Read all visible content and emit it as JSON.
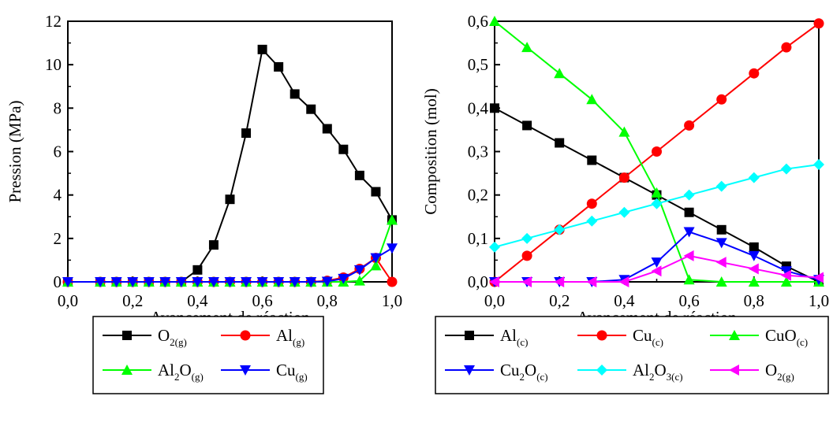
{
  "chart_data": [
    {
      "type": "line",
      "xlabel": "Avancement de réaction",
      "ylabel": "Pression (MPa)",
      "xlim": [
        0,
        1
      ],
      "ylim": [
        0,
        12
      ],
      "xticks": [
        "0,0",
        "0,2",
        "0,4",
        "0,6",
        "0,8",
        "1,0"
      ],
      "yticks": [
        "0",
        "2",
        "4",
        "6",
        "8",
        "10",
        "12"
      ],
      "legend_placement": "below",
      "series": [
        {
          "name": "O2(g)",
          "label_main": "O",
          "label_sub_1": "2(g)",
          "label_mid": "",
          "label_sub_2": "",
          "color": "#000000",
          "marker": "square",
          "x": [
            0,
            0.1,
            0.15,
            0.2,
            0.25,
            0.3,
            0.35,
            0.4,
            0.45,
            0.5,
            0.55,
            0.6,
            0.65,
            0.7,
            0.75,
            0.8,
            0.85,
            0.9,
            0.95,
            1.0
          ],
          "y": [
            0,
            0,
            0,
            0,
            0,
            0,
            0,
            0.55,
            1.7,
            3.8,
            6.85,
            10.7,
            9.9,
            8.65,
            7.95,
            7.05,
            6.1,
            4.9,
            4.15,
            2.85
          ]
        },
        {
          "name": "Al(g)",
          "label_main": "Al",
          "label_sub_1": "(g)",
          "label_mid": "",
          "label_sub_2": "",
          "color": "#ff0000",
          "marker": "circle",
          "x": [
            0,
            0.1,
            0.15,
            0.2,
            0.25,
            0.3,
            0.35,
            0.4,
            0.45,
            0.5,
            0.55,
            0.6,
            0.65,
            0.7,
            0.75,
            0.8,
            0.85,
            0.9,
            0.95,
            1.0
          ],
          "y": [
            0,
            0,
            0,
            0,
            0,
            0,
            0,
            0,
            0,
            0,
            0,
            0,
            0,
            0,
            0,
            0.05,
            0.2,
            0.6,
            1.1,
            0
          ]
        },
        {
          "name": "Al2O(g)",
          "label_main": "Al",
          "label_sub_1": "2",
          "label_mid": "O",
          "label_sub_2": "(g)",
          "color": "#00ff00",
          "marker": "triangle-up",
          "x": [
            0,
            0.1,
            0.15,
            0.2,
            0.25,
            0.3,
            0.35,
            0.4,
            0.45,
            0.5,
            0.55,
            0.6,
            0.65,
            0.7,
            0.75,
            0.8,
            0.85,
            0.9,
            0.95,
            1.0
          ],
          "y": [
            0,
            0,
            0,
            0,
            0,
            0,
            0,
            0,
            0,
            0,
            0,
            0,
            0,
            0,
            0,
            0,
            0,
            0.05,
            0.75,
            2.85
          ]
        },
        {
          "name": "Cu(g)",
          "label_main": "Cu",
          "label_sub_1": "(g)",
          "label_mid": "",
          "label_sub_2": "",
          "color": "#0000ff",
          "marker": "triangle-down",
          "x": [
            0,
            0.1,
            0.15,
            0.2,
            0.25,
            0.3,
            0.35,
            0.4,
            0.45,
            0.5,
            0.55,
            0.6,
            0.65,
            0.7,
            0.75,
            0.8,
            0.85,
            0.9,
            0.95,
            1.0
          ],
          "y": [
            0,
            0,
            0,
            0,
            0,
            0,
            0,
            0,
            0,
            0,
            0,
            0,
            0,
            0,
            0,
            0.02,
            0.15,
            0.55,
            1.1,
            1.55
          ]
        }
      ]
    },
    {
      "type": "line",
      "xlabel": "Avancement de réaction",
      "ylabel": "Composition (mol)",
      "xlim": [
        0,
        1
      ],
      "ylim": [
        0,
        0.6
      ],
      "xticks": [
        "0,0",
        "0,2",
        "0,4",
        "0,6",
        "0,8",
        "1,0"
      ],
      "yticks": [
        "0,0",
        "0,1",
        "0,2",
        "0,3",
        "0,4",
        "0,5",
        "0,6"
      ],
      "legend_placement": "below",
      "series": [
        {
          "name": "Al(c)",
          "label_main": "Al",
          "label_sub_1": "(c)",
          "label_mid": "",
          "label_sub_2": "",
          "color": "#000000",
          "marker": "square",
          "x": [
            0,
            0.1,
            0.2,
            0.3,
            0.4,
            0.5,
            0.6,
            0.7,
            0.8,
            0.9,
            1.0
          ],
          "y": [
            0.4,
            0.36,
            0.32,
            0.28,
            0.24,
            0.2,
            0.16,
            0.12,
            0.08,
            0.036,
            0.0
          ]
        },
        {
          "name": "Cu(c)",
          "label_main": "Cu",
          "label_sub_1": "(c)",
          "label_mid": "",
          "label_sub_2": "",
          "color": "#ff0000",
          "marker": "circle",
          "x": [
            0,
            0.1,
            0.2,
            0.3,
            0.4,
            0.5,
            0.6,
            0.7,
            0.8,
            0.9,
            1.0
          ],
          "y": [
            0.0,
            0.06,
            0.12,
            0.18,
            0.24,
            0.3,
            0.36,
            0.42,
            0.48,
            0.54,
            0.595
          ]
        },
        {
          "name": "CuO(c)",
          "label_main": "CuO",
          "label_sub_1": "(c)",
          "label_mid": "",
          "label_sub_2": "",
          "color": "#00ff00",
          "marker": "triangle-up",
          "x": [
            0,
            0.1,
            0.2,
            0.3,
            0.4,
            0.5,
            0.6,
            0.7,
            0.8,
            0.9,
            1.0
          ],
          "y": [
            0.6,
            0.54,
            0.48,
            0.42,
            0.345,
            0.205,
            0.005,
            0.0,
            0.0,
            0.0,
            0.0
          ]
        },
        {
          "name": "Cu2O(c)",
          "label_main": "Cu",
          "label_sub_1": "2",
          "label_mid": "O",
          "label_sub_2": "(c)",
          "color": "#0000ff",
          "marker": "triangle-down",
          "x": [
            0,
            0.1,
            0.2,
            0.3,
            0.4,
            0.5,
            0.6,
            0.7,
            0.8,
            0.9,
            1.0
          ],
          "y": [
            0.0,
            0.0,
            0.0,
            0.0,
            0.005,
            0.045,
            0.115,
            0.09,
            0.06,
            0.025,
            0.005
          ]
        },
        {
          "name": "Al2O3(c)",
          "label_main": "Al",
          "label_sub_1": "2",
          "label_mid": "O",
          "label_sub_2": "3(c)",
          "color": "#00ffff",
          "marker": "diamond",
          "x": [
            0,
            0.1,
            0.2,
            0.3,
            0.4,
            0.5,
            0.6,
            0.7,
            0.8,
            0.9,
            1.0
          ],
          "y": [
            0.08,
            0.1,
            0.12,
            0.14,
            0.16,
            0.18,
            0.2,
            0.22,
            0.24,
            0.26,
            0.27
          ]
        },
        {
          "name": "O2(g)",
          "label_main": "O",
          "label_sub_1": "2(g)",
          "label_mid": "",
          "label_sub_2": "",
          "color": "#ff00ff",
          "marker": "triangle-left",
          "x": [
            0,
            0.1,
            0.2,
            0.3,
            0.4,
            0.5,
            0.6,
            0.7,
            0.8,
            0.9,
            1.0
          ],
          "y": [
            0.0,
            0.0,
            0.0,
            0.0,
            0.0,
            0.025,
            0.06,
            0.045,
            0.03,
            0.015,
            0.01
          ]
        }
      ]
    }
  ]
}
